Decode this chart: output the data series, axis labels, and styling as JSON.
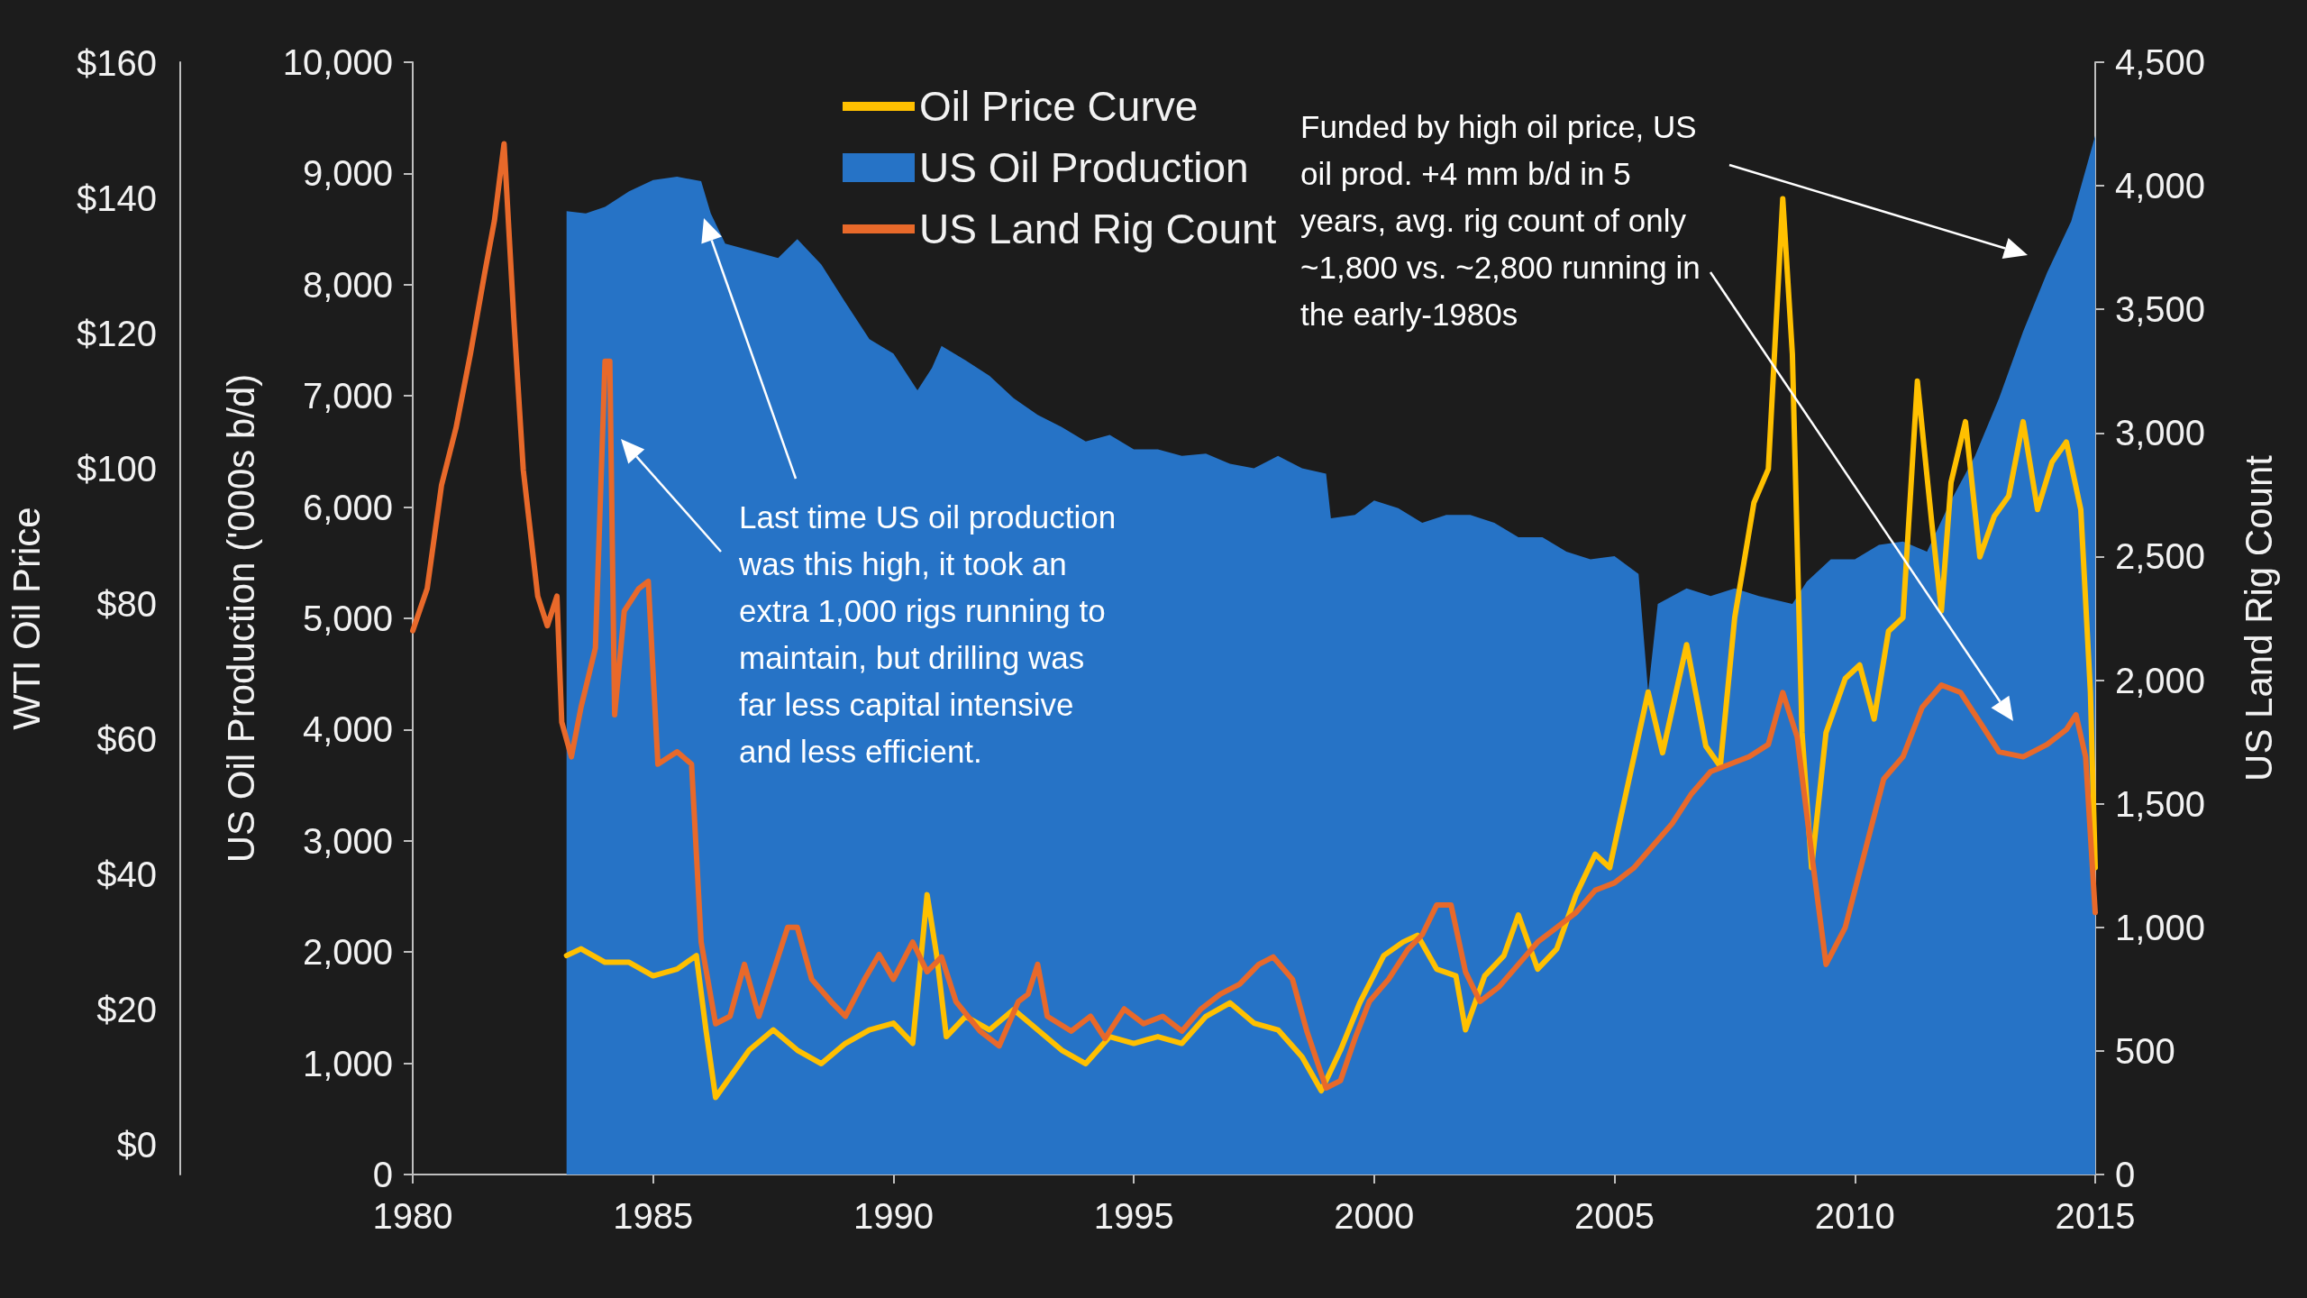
{
  "chart_data": {
    "type": "line",
    "ylabel": "US Oil Production ('000s b/d)",
    "y2label": "US Land Rig Count",
    "y3label": "WTI Oil Price",
    "xlim": [
      1980,
      2015
    ],
    "xticks": [
      1980,
      1985,
      1990,
      1995,
      2000,
      2005,
      2010,
      2015
    ],
    "ylim": [
      0,
      10000
    ],
    "yticks": [
      0,
      {
        "value": 1000,
        "label": "1,000"
      },
      {
        "value": 2000,
        "label": "2,000"
      },
      {
        "value": 3000,
        "label": "3,000"
      },
      {
        "value": 4000,
        "label": "4,000"
      },
      {
        "value": 5000,
        "label": "5,000"
      },
      {
        "value": 6000,
        "label": "6,000"
      },
      {
        "value": 7000,
        "label": "7,000"
      },
      {
        "value": 8000,
        "label": "8,000"
      },
      {
        "value": 9000,
        "label": "9,000"
      },
      {
        "value": 10000,
        "label": "10,000"
      }
    ],
    "y2lim": [
      0,
      4500
    ],
    "y2ticks": [
      0,
      500,
      {
        "value": 1000,
        "label": "1,000"
      },
      {
        "value": 1500,
        "label": "1,500"
      },
      {
        "value": 2000,
        "label": "2,000"
      },
      {
        "value": 2500,
        "label": "2,500"
      },
      {
        "value": 3000,
        "label": "3,000"
      },
      {
        "value": 3500,
        "label": "3,500"
      },
      {
        "value": 4000,
        "label": "4,000"
      },
      {
        "value": 4500,
        "label": "4,500"
      }
    ],
    "y3lim": [
      -4.4,
      160.2
    ],
    "y3ticks": [
      {
        "value": 0,
        "label": "$0"
      },
      {
        "value": 20,
        "label": "$20"
      },
      {
        "value": 40,
        "label": "$40"
      },
      {
        "value": 60,
        "label": "$60"
      },
      {
        "value": 80,
        "label": "$80"
      },
      {
        "value": 100,
        "label": "$100"
      },
      {
        "value": 120,
        "label": "$120"
      },
      {
        "value": 140,
        "label": "$140"
      },
      {
        "value": 160,
        "label": "$160"
      }
    ],
    "legend": "top",
    "grid": false,
    "series": [
      {
        "name": "Oil Price Curve",
        "axis": "y3",
        "color": "#ffc000",
        "x": [
          1983.2,
          1983.5,
          1984.0,
          1984.5,
          1985.0,
          1985.5,
          1985.9,
          1986.1,
          1986.3,
          1986.5,
          1987.0,
          1987.5,
          1988.0,
          1988.5,
          1989.0,
          1989.5,
          1990.0,
          1990.4,
          1990.7,
          1990.9,
          1991.1,
          1991.5,
          1992.0,
          1992.5,
          1993.0,
          1993.5,
          1994.0,
          1994.5,
          1995.0,
          1995.5,
          1996.0,
          1996.5,
          1997.0,
          1997.5,
          1998.0,
          1998.5,
          1998.9,
          1999.3,
          1999.7,
          2000.2,
          2000.6,
          2000.9,
          2001.3,
          2001.7,
          2001.9,
          2002.3,
          2002.7,
          2003.0,
          2003.4,
          2003.8,
          2004.2,
          2004.6,
          2004.9,
          2005.3,
          2005.7,
          2006.0,
          2006.5,
          2006.9,
          2007.2,
          2007.5,
          2007.9,
          2008.2,
          2008.5,
          2008.7,
          2008.9,
          2009.1,
          2009.4,
          2009.8,
          2010.1,
          2010.4,
          2010.7,
          2011.0,
          2011.3,
          2011.6,
          2011.8,
          2012.0,
          2012.3,
          2012.6,
          2012.9,
          2013.2,
          2013.5,
          2013.8,
          2014.1,
          2014.4,
          2014.7,
          2014.9,
          2015.0
        ],
        "values": [
          28,
          29,
          27,
          27,
          25,
          26,
          28,
          17,
          7,
          9,
          14,
          17,
          14,
          12,
          15,
          17,
          18,
          15,
          37,
          28,
          16,
          19,
          17,
          20,
          17,
          14,
          12,
          16,
          15,
          16,
          15,
          19,
          21,
          18,
          17,
          13,
          8,
          14,
          21,
          28,
          30,
          31,
          26,
          25,
          17,
          25,
          28,
          34,
          26,
          29,
          37,
          43,
          41,
          54,
          67,
          58,
          74,
          59,
          56,
          78,
          95,
          100,
          140,
          117,
          61,
          41,
          61,
          69,
          71,
          63,
          76,
          78,
          113,
          92,
          79,
          98,
          107,
          87,
          93,
          96,
          107,
          94,
          101,
          104,
          94,
          67,
          41
        ]
      },
      {
        "name": "US Oil Production",
        "type": "area",
        "axis": "y",
        "color": "#2673c6",
        "x": [
          1983.2,
          1983.6,
          1984.0,
          1984.5,
          1985.0,
          1985.5,
          1986.0,
          1986.2,
          1986.5,
          1987.0,
          1987.6,
          1988.0,
          1988.5,
          1989.0,
          1989.5,
          1990.0,
          1990.5,
          1990.8,
          1991.0,
          1991.5,
          1992.0,
          1992.5,
          1993.0,
          1993.5,
          1994.0,
          1994.5,
          1995.0,
          1995.5,
          1996.0,
          1996.5,
          1997.0,
          1997.5,
          1998.0,
          1998.5,
          1999.0,
          1999.1,
          1999.6,
          2000.0,
          2000.5,
          2001.0,
          2001.5,
          2002.0,
          2002.5,
          2003.0,
          2003.5,
          2004.0,
          2004.5,
          2005.0,
          2005.5,
          2005.7,
          2005.9,
          2006.5,
          2007.0,
          2007.5,
          2008.0,
          2008.7,
          2009.0,
          2009.5,
          2010.0,
          2010.5,
          2011.0,
          2011.5,
          2012.0,
          2012.5,
          2013.0,
          2013.5,
          2014.0,
          2014.5,
          2015.0
        ],
        "values": [
          8660,
          8640,
          8700,
          8840,
          8940,
          8970,
          8930,
          8640,
          8370,
          8310,
          8240,
          8410,
          8180,
          7840,
          7510,
          7380,
          7050,
          7250,
          7450,
          7320,
          7180,
          6980,
          6830,
          6720,
          6590,
          6650,
          6520,
          6520,
          6460,
          6480,
          6390,
          6350,
          6460,
          6350,
          6300,
          5900,
          5930,
          6060,
          5990,
          5860,
          5930,
          5930,
          5860,
          5730,
          5730,
          5600,
          5530,
          5560,
          5400,
          4340,
          5130,
          5270,
          5200,
          5270,
          5200,
          5130,
          5330,
          5530,
          5530,
          5660,
          5690,
          5600,
          6060,
          6460,
          6980,
          7580,
          8110,
          8570,
          9340
        ]
      },
      {
        "name": "US Land Rig Count",
        "axis": "y2",
        "color": "#e8692a",
        "x": [
          1980.0,
          1980.3,
          1980.6,
          1980.9,
          1981.2,
          1981.5,
          1981.7,
          1981.9,
          1982.1,
          1982.3,
          1982.6,
          1982.8,
          1983.0,
          1983.1,
          1983.3,
          1983.5,
          1983.8,
          1984.0,
          1984.1,
          1984.2,
          1984.4,
          1984.7,
          1984.9,
          1985.1,
          1985.5,
          1985.8,
          1986.0,
          1986.3,
          1986.6,
          1986.9,
          1987.2,
          1987.6,
          1987.8,
          1988.0,
          1988.3,
          1988.7,
          1989.0,
          1989.4,
          1989.7,
          1990.0,
          1990.4,
          1990.7,
          1991.0,
          1991.3,
          1991.8,
          1992.2,
          1992.6,
          1992.8,
          1993.0,
          1993.2,
          1993.7,
          1994.1,
          1994.4,
          1994.8,
          1995.2,
          1995.6,
          1996.0,
          1996.4,
          1996.8,
          1997.2,
          1997.6,
          1997.9,
          1998.3,
          1998.6,
          1999.0,
          1999.3,
          1999.6,
          1999.9,
          2000.3,
          2000.7,
          2001.0,
          2001.3,
          2001.6,
          2001.9,
          2002.2,
          2002.6,
          2003.0,
          2003.4,
          2003.8,
          2004.2,
          2004.6,
          2005.0,
          2005.4,
          2005.8,
          2006.2,
          2006.6,
          2007.0,
          2007.4,
          2007.8,
          2008.2,
          2008.5,
          2008.8,
          2009.1,
          2009.4,
          2009.8,
          2010.2,
          2010.6,
          2011.0,
          2011.4,
          2011.8,
          2012.2,
          2012.6,
          2013.0,
          2013.5,
          2014.0,
          2014.4,
          2014.6,
          2014.8,
          2015.0
        ],
        "values": [
          2200,
          2370,
          2790,
          3020,
          3320,
          3650,
          3860,
          4170,
          3470,
          2850,
          2340,
          2220,
          2340,
          1830,
          1690,
          1890,
          2130,
          3290,
          3290,
          1860,
          2280,
          2370,
          2400,
          1660,
          1710,
          1660,
          940,
          610,
          640,
          850,
          640,
          880,
          1000,
          1000,
          790,
          700,
          640,
          790,
          890,
          790,
          940,
          820,
          880,
          700,
          580,
          520,
          700,
          730,
          850,
          640,
          580,
          640,
          550,
          670,
          610,
          640,
          580,
          670,
          730,
          770,
          850,
          880,
          790,
          580,
          350,
          380,
          550,
          700,
          790,
          910,
          970,
          1090,
          1090,
          820,
          700,
          760,
          850,
          940,
          1000,
          1060,
          1150,
          1180,
          1240,
          1330,
          1420,
          1540,
          1630,
          1660,
          1690,
          1740,
          1950,
          1770,
          1300,
          850,
          1000,
          1300,
          1600,
          1690,
          1890,
          1980,
          1950,
          1830,
          1710,
          1690,
          1740,
          1800,
          1860,
          1690,
          1060
        ]
      }
    ],
    "annotations": [
      "Last time US oil production was this high, it took an extra 1,000 rigs running to maintain, but drilling was far less capital intensive and less efficient.",
      "Funded by high oil price, US oil prod. +4 mm b/d in 5 years, avg. rig count of only ~1,800 vs. ~2,800 running in the early-1980s"
    ]
  }
}
